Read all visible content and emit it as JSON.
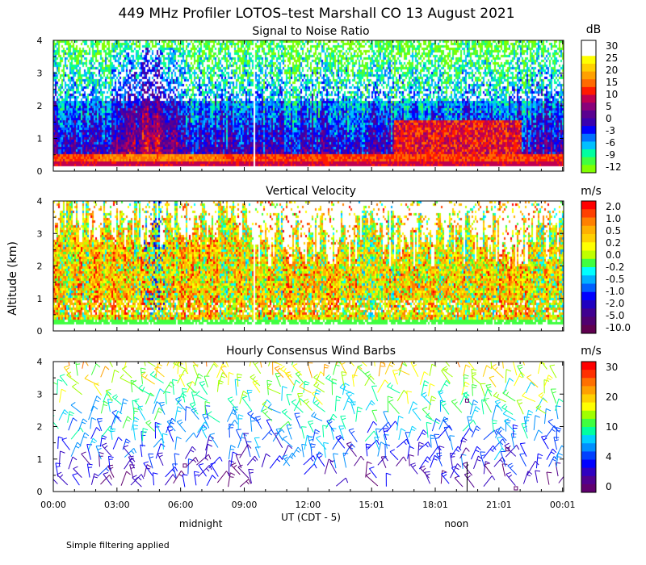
{
  "title": "449 MHz Profiler LOTOS–test Marshall CO 13 August 2021",
  "ylabel": "Altitude (km)",
  "xlabel": "UT  (CDT - 5)",
  "x_ticks": [
    "00:00",
    "03:00",
    "06:00",
    "09:00",
    "12:00",
    "15:01",
    "18:01",
    "21:01",
    "00:01"
  ],
  "x_tick_hours": [
    0,
    3,
    6,
    9,
    12,
    15,
    18,
    21,
    24
  ],
  "y_ticks": [
    "0",
    "1",
    "2",
    "3",
    "4"
  ],
  "y_range_km": [
    0,
    4
  ],
  "x_range_hours": [
    0,
    24.05
  ],
  "midnight_label": "midnight",
  "noon_label": "noon",
  "midnight_hour": 6,
  "noon_hour": 19,
  "footnote": "Simple filtering applied",
  "chart_data": [
    {
      "type": "heatmap",
      "title": "Signal to Noise Ratio",
      "unit": "dB",
      "ylim": [
        0,
        4
      ],
      "data_gap_hours": [
        9.4,
        9.5
      ],
      "legend_labels": [
        "30",
        "25",
        "20",
        "15",
        "10",
        "5",
        "0",
        "-3",
        "-6",
        "-9",
        "-12"
      ],
      "colorbar_colors": [
        "#ffffff",
        "#ffffff",
        "#ffff00",
        "#ffd000",
        "#ffa000",
        "#ff6a00",
        "#ff1a00",
        "#c00050",
        "#8a007a",
        "#5a0090",
        "#3a00b0",
        "#0000ff",
        "#0070ff",
        "#00c0ff",
        "#00ffa0",
        "#40ff40",
        "#80ff00"
      ]
    },
    {
      "type": "heatmap",
      "title": "Vertical Velocity",
      "unit": "m/s",
      "ylim": [
        0,
        4
      ],
      "data_gap_hours": [
        9.4,
        9.5
      ],
      "legend_labels": [
        "2.0",
        "1.0",
        "0.5",
        "0.2",
        "0.0",
        "-0.2",
        "-0.5",
        "-1.0",
        "-2.0",
        "-5.0",
        "-10.0"
      ],
      "colorbar_colors": [
        "#ff0000",
        "#ff4000",
        "#ff8000",
        "#ffb000",
        "#ffd000",
        "#ffff00",
        "#c0ff00",
        "#40ff40",
        "#00ffff",
        "#00b0ff",
        "#0060ff",
        "#0000ff",
        "#2000c0",
        "#400090",
        "#500070",
        "#600050"
      ]
    },
    {
      "type": "scatter",
      "title": "Hourly Consensus Wind Barbs",
      "unit": "m/s",
      "ylim": [
        0,
        4
      ],
      "legend_labels": [
        "30",
        "20",
        "10",
        "4",
        "0"
      ],
      "colorbar_colors": [
        "#ff0000",
        "#ff3000",
        "#ff7000",
        "#ffa000",
        "#ffd000",
        "#ffff00",
        "#a0ff00",
        "#40ff40",
        "#00ffa0",
        "#00d0ff",
        "#0090ff",
        "#0040ff",
        "#0000ff",
        "#3000c0",
        "#500090",
        "#600070"
      ]
    }
  ]
}
